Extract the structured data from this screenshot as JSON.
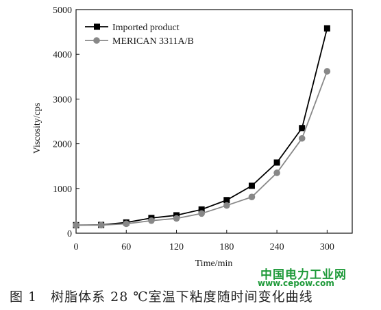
{
  "chart_data": {
    "type": "line",
    "xlabel": "Time/min",
    "ylabel": "Viscosity/cps",
    "xlim": [
      0,
      330
    ],
    "ylim": [
      0,
      5000
    ],
    "xticks": [
      0,
      60,
      120,
      180,
      240,
      300
    ],
    "yticks": [
      0,
      1000,
      2000,
      3000,
      4000,
      5000
    ],
    "grid": false,
    "legend_position": "top-left",
    "series": [
      {
        "name": "Imported product",
        "marker": "square",
        "color": "#000000",
        "x": [
          0,
          30,
          60,
          90,
          120,
          150,
          180,
          210,
          240,
          270,
          300
        ],
        "y": [
          180,
          185,
          240,
          340,
          400,
          530,
          740,
          1060,
          1580,
          2350,
          4580
        ]
      },
      {
        "name": "MERICAN 3311A/B",
        "marker": "circle",
        "color": "#888888",
        "x": [
          0,
          30,
          60,
          90,
          120,
          150,
          180,
          210,
          240,
          270,
          300
        ],
        "y": [
          180,
          180,
          210,
          280,
          330,
          440,
          620,
          810,
          1350,
          2120,
          3620
        ]
      }
    ]
  },
  "caption": "图 1　树脂体系 28 ℃室温下粘度随时间变化曲线",
  "watermark": {
    "text_cn": "中国电力工业网",
    "url": "www.cepow.com"
  }
}
